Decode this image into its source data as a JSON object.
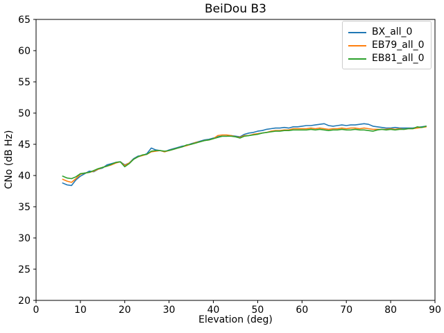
{
  "chart_data": {
    "type": "line",
    "title": "BeiDou B3",
    "xlabel": "Elevation (deg)",
    "ylabel": "CNo (dB Hz)",
    "xlim": [
      0,
      90
    ],
    "ylim": [
      20,
      65
    ],
    "x_ticks": [
      0,
      10,
      20,
      30,
      40,
      50,
      60,
      70,
      80,
      90
    ],
    "y_ticks": [
      20,
      25,
      30,
      35,
      40,
      45,
      50,
      55,
      60,
      65
    ],
    "grid": false,
    "legend_position": "upper right",
    "frame_color": "#000000",
    "x": [
      6,
      7,
      8,
      9,
      10,
      11,
      12,
      13,
      14,
      15,
      16,
      17,
      18,
      19,
      20,
      21,
      22,
      23,
      24,
      25,
      26,
      27,
      28,
      29,
      30,
      31,
      32,
      33,
      34,
      35,
      36,
      37,
      38,
      39,
      40,
      41,
      42,
      43,
      44,
      45,
      46,
      47,
      48,
      49,
      50,
      51,
      52,
      53,
      54,
      55,
      56,
      57,
      58,
      59,
      60,
      61,
      62,
      63,
      64,
      65,
      66,
      67,
      68,
      69,
      70,
      71,
      72,
      73,
      74,
      75,
      76,
      77,
      78,
      79,
      80,
      81,
      82,
      83,
      84,
      85,
      86,
      87,
      88
    ],
    "series": [
      {
        "name": "BX_all_0",
        "color": "#1f77b4",
        "values": [
          38.8,
          38.5,
          38.4,
          39.3,
          39.9,
          40.3,
          40.7,
          40.6,
          41.0,
          41.2,
          41.7,
          41.9,
          42.1,
          42.2,
          41.7,
          42.0,
          42.7,
          43.1,
          43.2,
          43.5,
          44.4,
          44.1,
          44.0,
          43.8,
          44.1,
          44.3,
          44.5,
          44.7,
          44.8,
          45.1,
          45.3,
          45.5,
          45.7,
          45.8,
          46.0,
          46.2,
          46.3,
          46.3,
          46.4,
          46.3,
          46.2,
          46.6,
          46.8,
          46.9,
          47.1,
          47.2,
          47.4,
          47.5,
          47.6,
          47.6,
          47.7,
          47.6,
          47.8,
          47.8,
          47.9,
          48.0,
          48.0,
          48.1,
          48.2,
          48.3,
          48.0,
          47.9,
          48.0,
          48.1,
          48.0,
          48.1,
          48.1,
          48.2,
          48.3,
          48.2,
          47.9,
          47.8,
          47.7,
          47.6,
          47.6,
          47.7,
          47.6,
          47.6,
          47.6,
          47.6,
          47.7,
          47.8,
          47.9
        ]
      },
      {
        "name": "EB79_all_0",
        "color": "#ff7f0e",
        "values": [
          39.4,
          39.1,
          38.9,
          39.5,
          40.2,
          40.4,
          40.5,
          40.7,
          41.0,
          41.3,
          41.5,
          41.7,
          42.0,
          42.2,
          41.6,
          42.0,
          42.6,
          43.0,
          43.2,
          43.4,
          43.8,
          43.9,
          44.0,
          43.8,
          44.0,
          44.2,
          44.4,
          44.6,
          44.8,
          45.0,
          45.3,
          45.4,
          45.6,
          45.7,
          45.9,
          46.4,
          46.5,
          46.5,
          46.4,
          46.2,
          46.1,
          46.4,
          46.4,
          46.6,
          46.7,
          46.8,
          46.9,
          47.1,
          47.2,
          47.2,
          47.3,
          47.3,
          47.5,
          47.5,
          47.5,
          47.5,
          47.6,
          47.5,
          47.6,
          47.5,
          47.4,
          47.5,
          47.5,
          47.6,
          47.5,
          47.6,
          47.6,
          47.5,
          47.6,
          47.5,
          47.4,
          47.4,
          47.4,
          47.4,
          47.5,
          47.4,
          47.5,
          47.4,
          47.5,
          47.5,
          47.6,
          47.7,
          47.8
        ]
      },
      {
        "name": "EB81_all_0",
        "color": "#2ca02c",
        "values": [
          39.9,
          39.6,
          39.5,
          39.8,
          40.3,
          40.4,
          40.5,
          40.8,
          41.1,
          41.3,
          41.5,
          41.8,
          42.1,
          42.2,
          41.4,
          41.9,
          42.6,
          43.0,
          43.3,
          43.4,
          43.9,
          44.0,
          44.0,
          43.9,
          44.0,
          44.2,
          44.4,
          44.6,
          44.9,
          45.0,
          45.2,
          45.4,
          45.6,
          45.7,
          45.9,
          46.1,
          46.3,
          46.3,
          46.3,
          46.2,
          46.0,
          46.3,
          46.4,
          46.5,
          46.6,
          46.8,
          46.9,
          47.0,
          47.1,
          47.1,
          47.2,
          47.2,
          47.3,
          47.3,
          47.3,
          47.3,
          47.4,
          47.3,
          47.4,
          47.3,
          47.2,
          47.3,
          47.3,
          47.4,
          47.3,
          47.3,
          47.4,
          47.3,
          47.3,
          47.2,
          47.1,
          47.3,
          47.4,
          47.3,
          47.4,
          47.3,
          47.4,
          47.4,
          47.5,
          47.5,
          47.8,
          47.7,
          47.9
        ]
      }
    ]
  }
}
